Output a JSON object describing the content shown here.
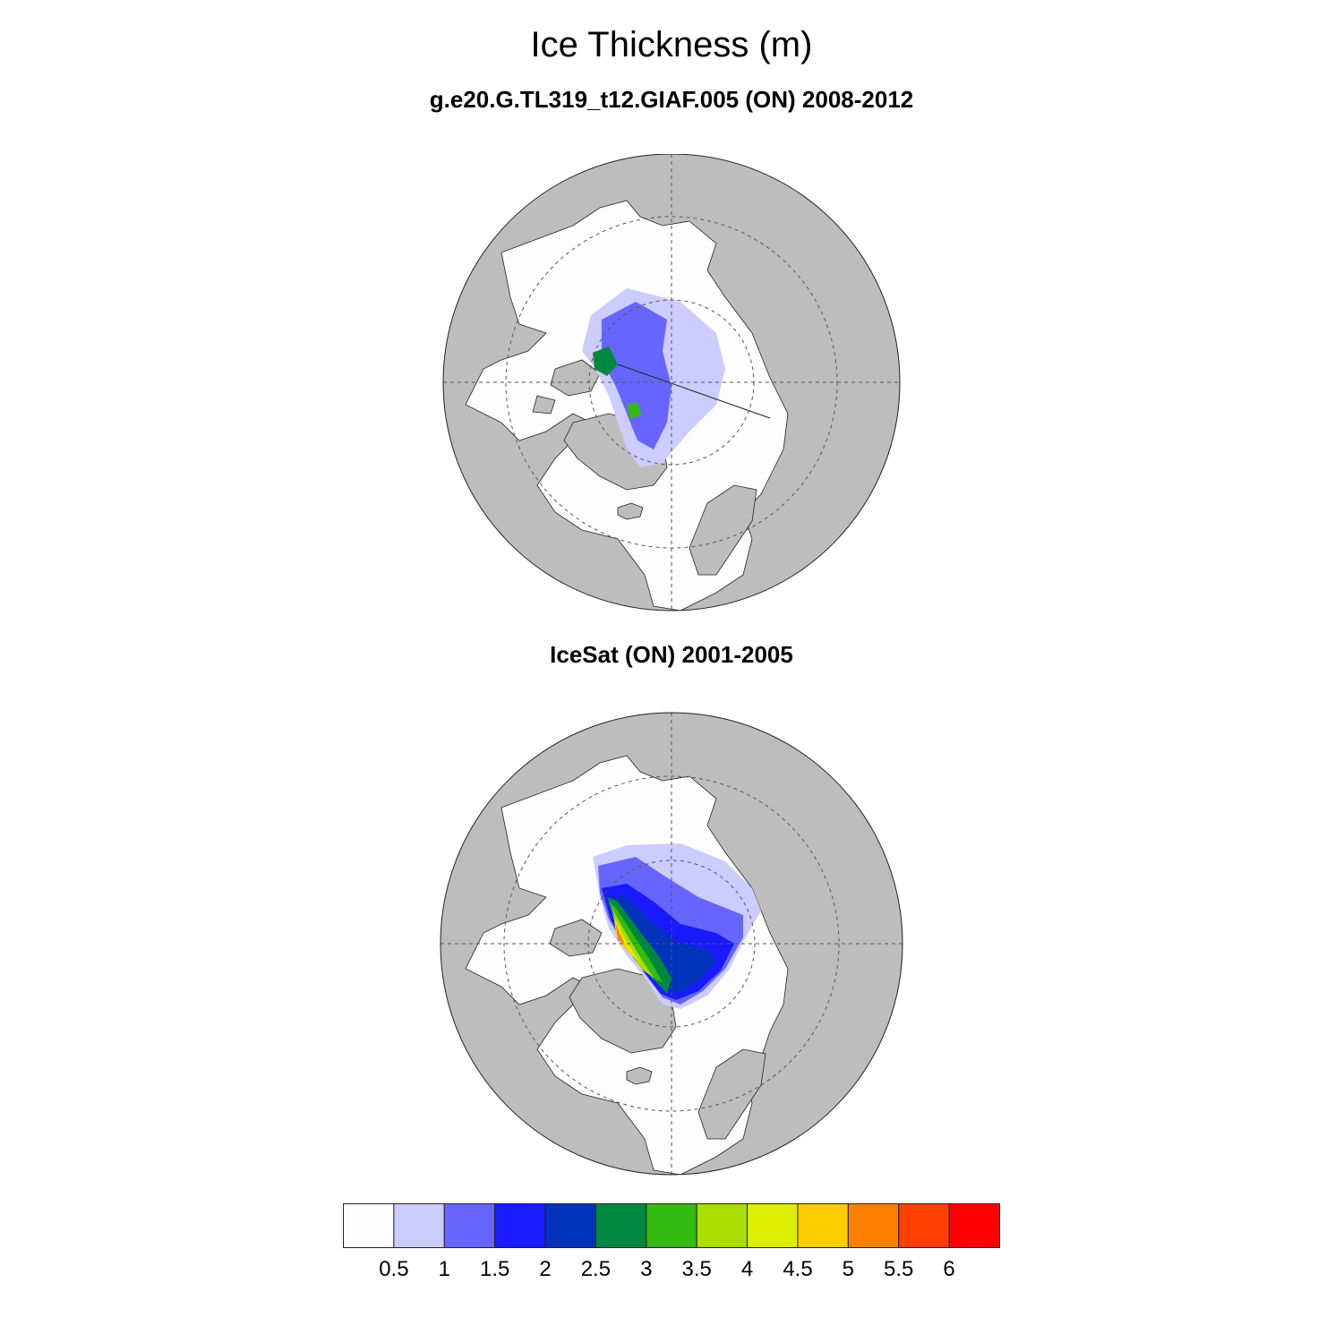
{
  "figure": {
    "title": "Ice Thickness (m)",
    "colors": {
      "land": "#bdbdbd",
      "ocean": "#fdfdfd",
      "coast": "#222222",
      "grid": "#555555"
    }
  },
  "panels": [
    {
      "id": "model",
      "title": "g.e20.G.TL319_t12.GIAF.005 (ON) 2008-2012",
      "projection": "north-polar-stereographic",
      "grid_latitudes": [
        60,
        75
      ]
    },
    {
      "id": "observations",
      "title": "IceSat (ON) 2001-2005",
      "projection": "north-polar-stereographic",
      "grid_latitudes": [
        60,
        75
      ]
    }
  ],
  "colorbar": {
    "unit_from_title": "m",
    "labels": [
      "0.5",
      "1",
      "1.5",
      "2",
      "2.5",
      "3",
      "3.5",
      "4",
      "4.5",
      "5",
      "5.5",
      "6"
    ],
    "levels": [
      0.5,
      1,
      1.5,
      2,
      2.5,
      3,
      3.5,
      4,
      4.5,
      5,
      5.5,
      6
    ],
    "colors": [
      "#fdfdfd",
      "#ccccff",
      "#6666ff",
      "#1a1aff",
      "#0033bb",
      "#008840",
      "#33bb11",
      "#aadd00",
      "#ddee00",
      "#ffcc00",
      "#ff8000",
      "#ff4000",
      "#ff0000"
    ]
  }
}
